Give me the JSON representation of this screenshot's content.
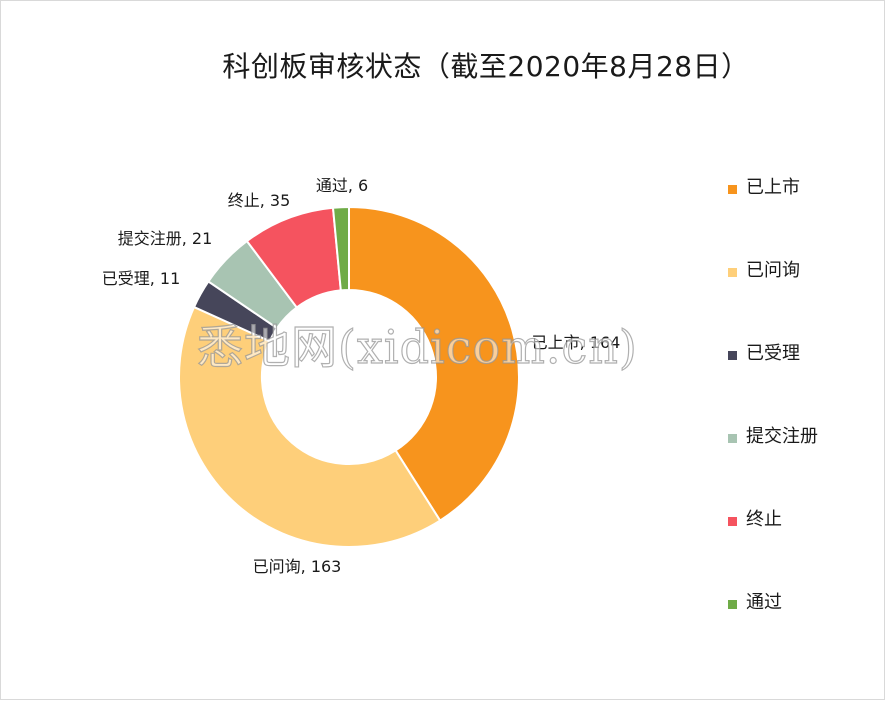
{
  "chart_data": {
    "type": "pie",
    "title": "科创板审核状态（截至2020年8月28日）",
    "donut": true,
    "legend_position": "right",
    "categories": [
      "已上市",
      "已问询",
      "已受理",
      "提交注册",
      "终止",
      "通过"
    ],
    "values": [
      164,
      163,
      11,
      21,
      35,
      6
    ],
    "colors": [
      "#f7941d",
      "#fecf7a",
      "#46465a",
      "#a8c4b2",
      "#f5535f",
      "#6fab47"
    ],
    "data_labels": [
      "已上市, 164",
      "已问询, 163",
      "已受理, 11",
      "提交注册, 21",
      "终止, 35",
      "通过, 6"
    ]
  },
  "watermark": "悉地网(xidicom.cn)"
}
